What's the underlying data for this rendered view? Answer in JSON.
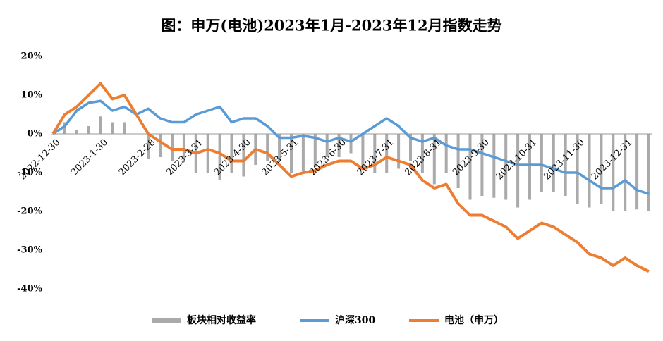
{
  "chart_data": {
    "type": "line",
    "title": "图：申万(电池)2023年1月-2023年12月指数走势",
    "categories": [
      "2022-12-30",
      null,
      null,
      null,
      "2023-1-30",
      null,
      null,
      null,
      "2023-2-28",
      null,
      null,
      null,
      "2023-3-31",
      null,
      null,
      null,
      "2023-4-30",
      null,
      null,
      null,
      "2023-5-31",
      null,
      null,
      null,
      "2023-6-30",
      null,
      null,
      null,
      "2023-7-31",
      null,
      null,
      null,
      "2023-8-31",
      null,
      null,
      null,
      "2023-9-30",
      null,
      null,
      null,
      "2023-10-31",
      null,
      null,
      null,
      "2023-11-30",
      null,
      null,
      null,
      "2023-12-31",
      null,
      null
    ],
    "series": [
      {
        "name": "板块相对收益率",
        "type": "bar",
        "color": "#aaaaaa",
        "values": [
          0,
          3,
          1,
          2,
          4.5,
          3,
          3,
          0,
          -6.5,
          -6,
          -7,
          -7,
          -10,
          -10,
          -12,
          -10,
          -11,
          -8,
          -7,
          -7,
          -10,
          -9.5,
          -8.5,
          -6,
          -6,
          -5,
          -9,
          -10,
          -10,
          -9,
          -7,
          -10,
          -13,
          -10,
          -14,
          -17,
          -16,
          -16.5,
          -17,
          -19,
          -17,
          -15,
          -15,
          -16,
          -18,
          -19,
          -18,
          -20,
          -20,
          -19.5,
          -20
        ]
      },
      {
        "name": "沪深300",
        "type": "line",
        "color": "#5b9bd5",
        "values": [
          0,
          2,
          6,
          8,
          8.5,
          6,
          7,
          5,
          6.5,
          4,
          3,
          3,
          5,
          6,
          7,
          3,
          4,
          4,
          2,
          -1,
          -1,
          -0.5,
          -1,
          -2,
          -1,
          -2,
          0,
          2,
          4,
          2,
          -1,
          -2,
          -1,
          -3,
          -4,
          -4,
          -5,
          -6,
          -7,
          -8,
          -8,
          -8,
          -9,
          -10,
          -10,
          -12,
          -14,
          -14,
          -12,
          -14.5,
          -15.5
        ]
      },
      {
        "name": "电池（申万）",
        "type": "line",
        "color": "#ed7d31",
        "values": [
          0,
          5,
          7,
          10,
          13,
          9,
          10,
          5,
          0,
          -2,
          -4,
          -4,
          -5,
          -4,
          -5,
          -7,
          -7,
          -4,
          -5,
          -8,
          -11,
          -10,
          -9.5,
          -8,
          -7,
          -7,
          -9,
          -8,
          -6,
          -7,
          -8,
          -12,
          -14,
          -13,
          -18,
          -21,
          -21,
          -22.5,
          -24,
          -27,
          -25,
          -23,
          -24,
          -26,
          -28,
          -31,
          -32,
          -34,
          -32,
          -34,
          -35.5
        ]
      }
    ],
    "ylim": [
      -40,
      20
    ],
    "yticks": [
      {
        "value": 20,
        "label": "20%"
      },
      {
        "value": 10,
        "label": "10%"
      },
      {
        "value": 0,
        "label": "0%"
      },
      {
        "value": -10,
        "label": "-10%"
      },
      {
        "value": -20,
        "label": "-20%"
      },
      {
        "value": -30,
        "label": "-30%"
      },
      {
        "value": -40,
        "label": "-40%"
      }
    ],
    "grid": false
  }
}
